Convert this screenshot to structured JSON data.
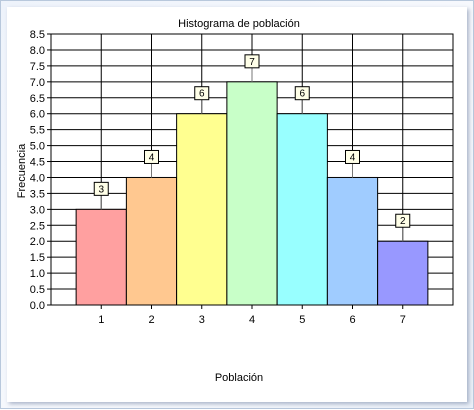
{
  "chart_data": {
    "type": "bar",
    "title": "Histograma de población",
    "xlabel": "Población",
    "ylabel": "Frecuencia",
    "categories": [
      "1",
      "2",
      "3",
      "4",
      "5",
      "6",
      "7"
    ],
    "values": [
      3,
      4,
      6,
      7,
      6,
      4,
      2
    ],
    "data_labels": [
      "3",
      "4",
      "6",
      "7",
      "6",
      "4",
      "2"
    ],
    "bar_colors": [
      "#ffa0a0",
      "#ffc890",
      "#ffff90",
      "#c8ffc8",
      "#98ffff",
      "#a0ccff",
      "#9898ff"
    ],
    "ylim": [
      0,
      8.5
    ],
    "yticks": [
      "0.0",
      "0.5",
      "1.0",
      "1.5",
      "2.0",
      "2.5",
      "3.0",
      "3.5",
      "4.0",
      "4.5",
      "5.0",
      "5.5",
      "6.0",
      "6.5",
      "7.0",
      "7.5",
      "8.0",
      "8.5"
    ],
    "grid": true,
    "legend": "none"
  }
}
